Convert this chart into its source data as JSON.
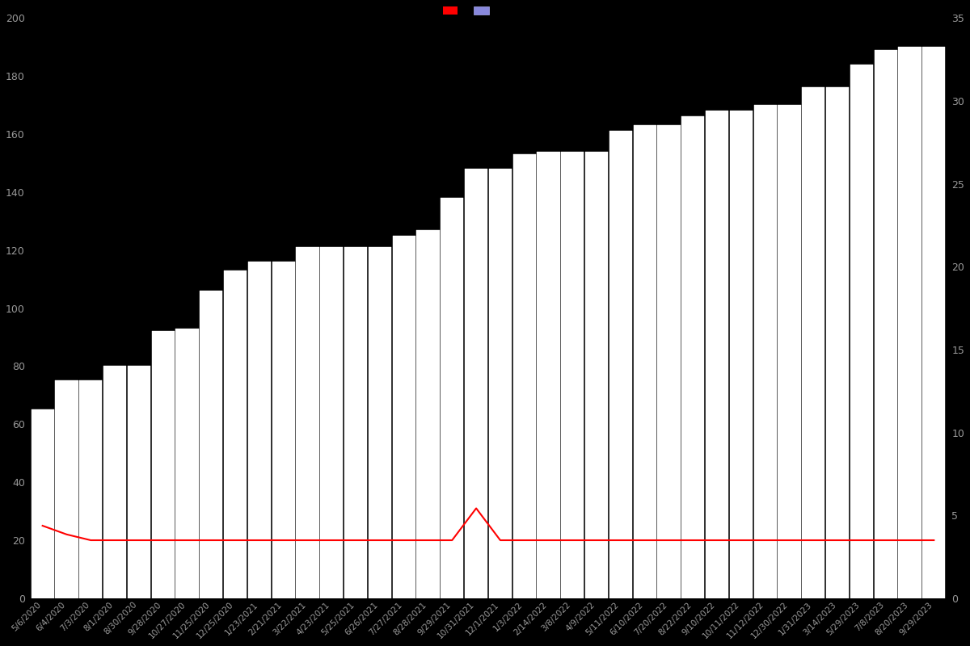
{
  "background_color": "#000000",
  "bar_color_face": "#8888dd",
  "bar_color_edge": "#ffffff",
  "line_color": "#ff0000",
  "text_color": "#999999",
  "ylim_left": [
    0,
    200
  ],
  "ylim_right": [
    0,
    35
  ],
  "yticks_left": [
    0,
    20,
    40,
    60,
    80,
    100,
    120,
    140,
    160,
    180,
    200
  ],
  "yticks_right": [
    0,
    5,
    10,
    15,
    20,
    25,
    30,
    35
  ],
  "dates": [
    "5/6/2020",
    "6/4/2020",
    "7/3/2020",
    "8/1/2020",
    "8/30/2020",
    "9/28/2020",
    "10/27/2020",
    "11/25/2020",
    "12/25/2020",
    "1/23/2021",
    "2/21/2021",
    "3/22/2021",
    "4/23/2021",
    "5/25/2021",
    "6/26/2021",
    "7/27/2021",
    "8/28/2021",
    "9/29/2021",
    "10/31/2021",
    "12/1/2021",
    "1/3/2022",
    "2/14/2022",
    "3/8/2022",
    "4/9/2022",
    "5/11/2022",
    "6/10/2022",
    "7/20/2022",
    "8/22/2022",
    "9/10/2022",
    "10/11/2022",
    "11/12/2022",
    "12/30/2022",
    "1/31/2023",
    "3/14/2023",
    "5/29/2023",
    "7/8/2023",
    "8/20/2023",
    "9/29/2023"
  ],
  "bar_values": [
    65,
    75,
    75,
    80,
    80,
    92,
    93,
    106,
    113,
    116,
    116,
    121,
    121,
    121,
    121,
    125,
    127,
    138,
    148,
    148,
    153,
    154,
    154,
    154,
    161,
    163,
    163,
    166,
    168,
    168,
    170,
    170,
    176,
    176,
    184,
    189,
    190,
    190
  ],
  "line_values": [
    25,
    22,
    20,
    20,
    20,
    20,
    20,
    20,
    20,
    20,
    20,
    20,
    20,
    20,
    20,
    20,
    20,
    20,
    31,
    20,
    20,
    20,
    20,
    20,
    20,
    20,
    20,
    20,
    20,
    20,
    20,
    20,
    20,
    20,
    20,
    20,
    20,
    20
  ]
}
